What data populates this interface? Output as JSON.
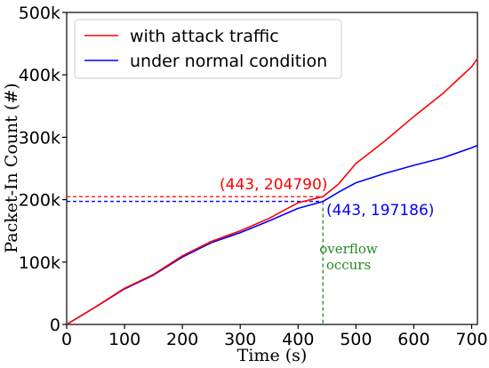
{
  "chart_data": {
    "type": "line",
    "title": "",
    "xlabel": "Time (s)",
    "ylabel": "Packet-In Count (#)",
    "xlim": [
      0,
      710
    ],
    "ylim": [
      0,
      500000
    ],
    "x_ticks": [
      0,
      100,
      200,
      300,
      400,
      500,
      600,
      700
    ],
    "y_ticks": [
      0,
      100000,
      200000,
      300000,
      400000,
      500000
    ],
    "y_tick_labels": [
      "0",
      "100k",
      "200k",
      "300k",
      "400k",
      "500k"
    ],
    "x_tick_labels": [
      "0",
      "100",
      "200",
      "300",
      "400",
      "500",
      "600",
      "700"
    ],
    "grid": false,
    "legend_position": "top-left",
    "series": [
      {
        "name": "with attack traffic",
        "color": "#ff0000",
        "x": [
          0,
          50,
          100,
          150,
          200,
          250,
          300,
          350,
          400,
          443,
          470,
          500,
          550,
          600,
          650,
          700,
          710
        ],
        "y": [
          0,
          28000,
          58000,
          80000,
          110000,
          133000,
          150000,
          170000,
          195000,
          204790,
          225000,
          258000,
          294000,
          333000,
          370000,
          413000,
          426000
        ]
      },
      {
        "name": "under normal condition",
        "color": "#0000ff",
        "x": [
          0,
          50,
          100,
          150,
          200,
          250,
          300,
          350,
          400,
          443,
          470,
          500,
          550,
          600,
          650,
          700,
          710
        ],
        "y": [
          0,
          28000,
          57000,
          79000,
          108000,
          131000,
          147000,
          166000,
          186000,
          197186,
          212000,
          227000,
          242000,
          255000,
          267000,
          283000,
          287000
        ]
      }
    ],
    "annotations": [
      {
        "text": "(443, 204790)",
        "x": 443,
        "y": 204790,
        "color": "#ff0000"
      },
      {
        "text": "(443, 197186)",
        "x": 443,
        "y": 197186,
        "color": "#0000ff"
      },
      {
        "text_line1": "overflow",
        "text_line2": "occurs",
        "x": 443,
        "color": "#228b22"
      }
    ]
  }
}
